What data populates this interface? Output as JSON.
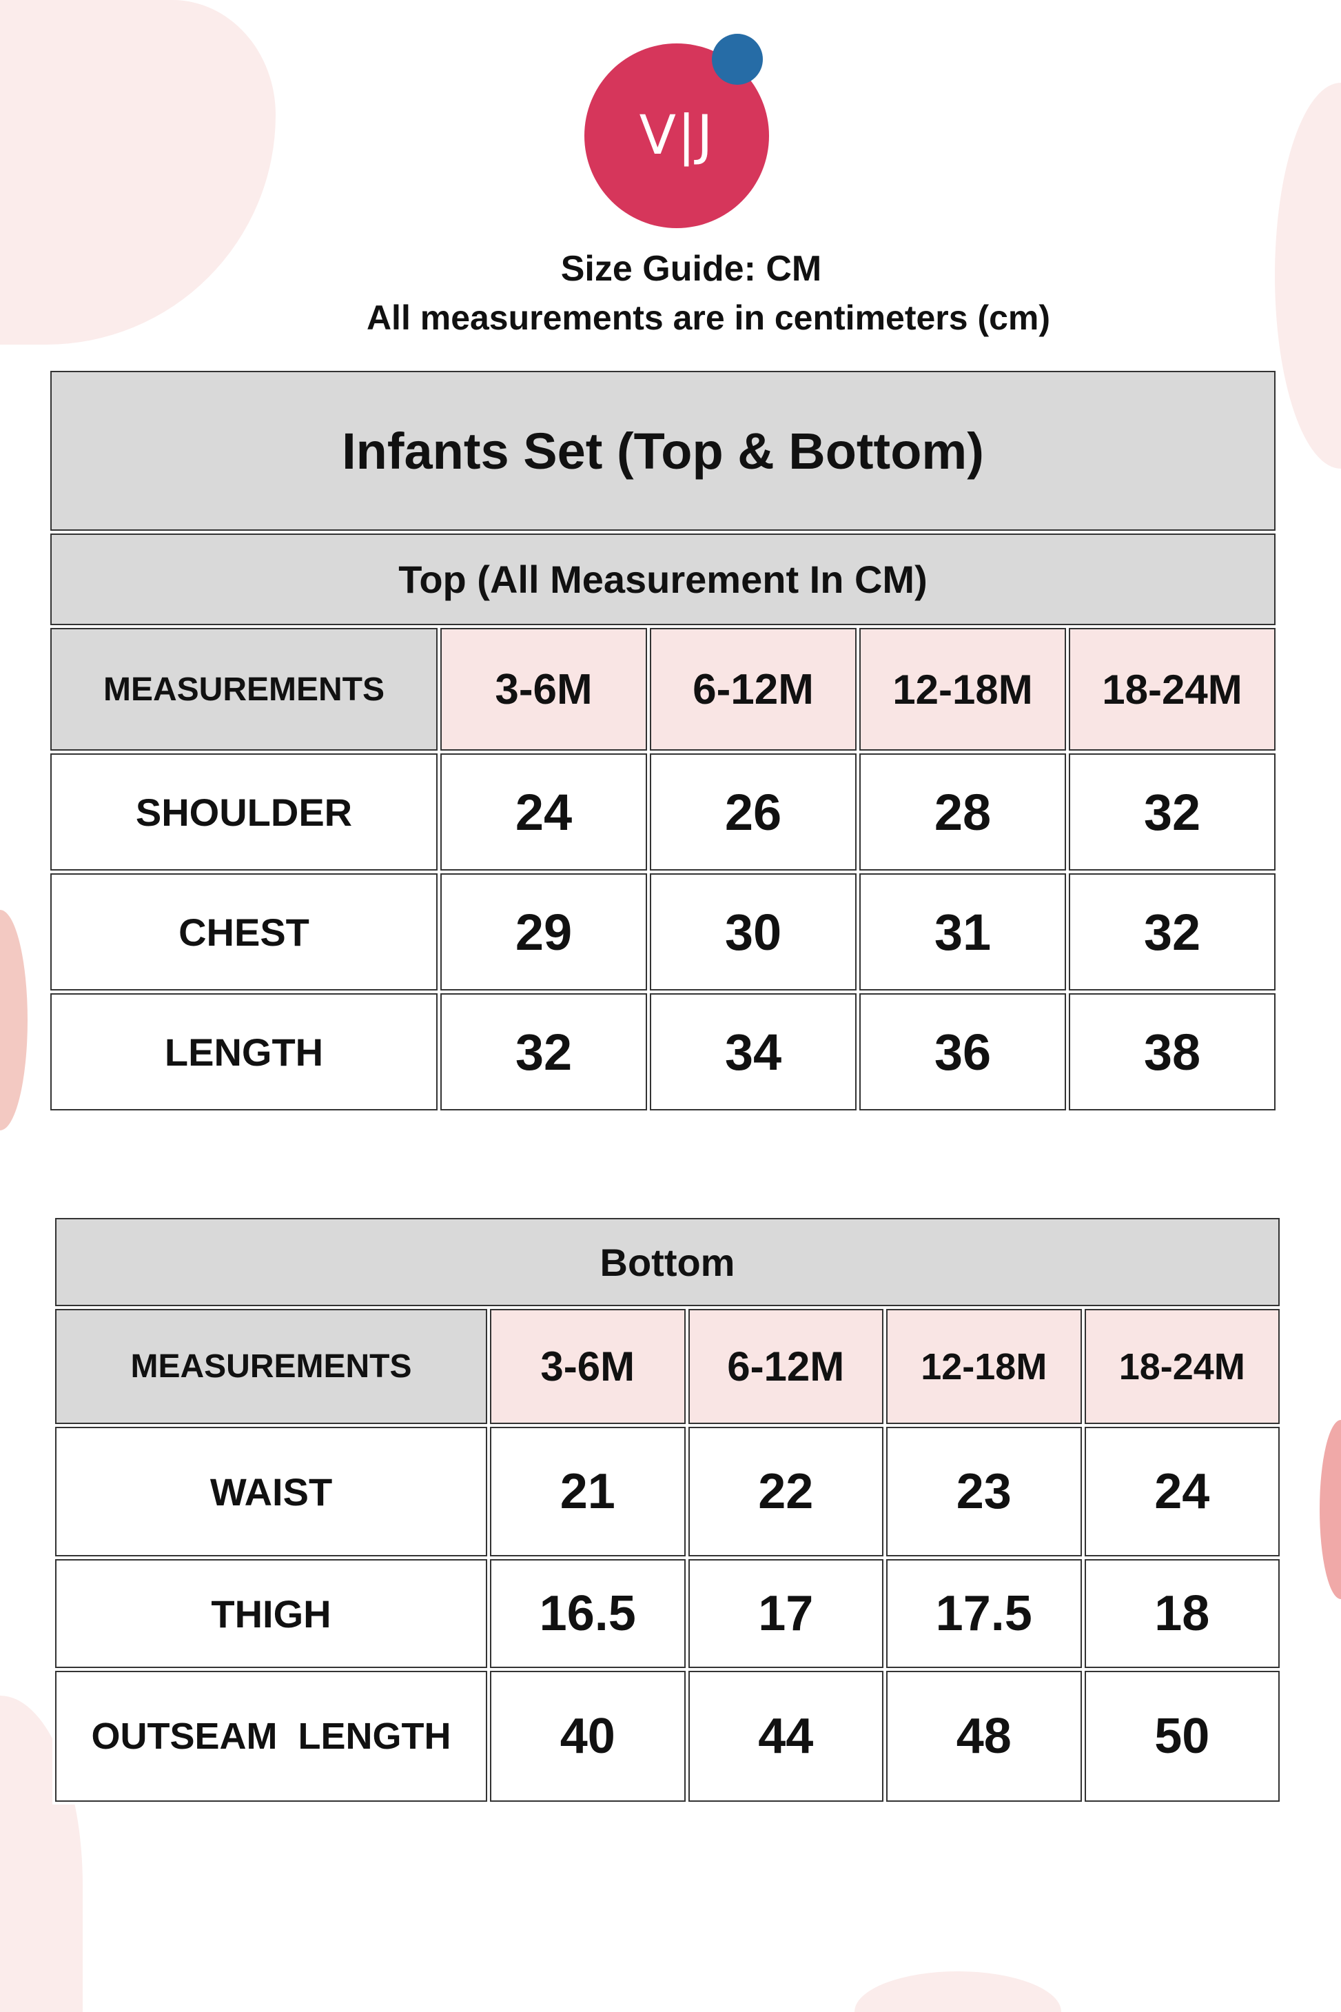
{
  "brand": {
    "logo_text": "V|J",
    "logo_color": "#d6365b",
    "dot_color": "#266ca6"
  },
  "heading": {
    "title": "Size Guide: CM",
    "subtitle": "All measurements are in centimeters (cm)"
  },
  "top_table": {
    "title": "Infants Set (Top & Bottom)",
    "section": "Top (All Measurement In CM)",
    "header": [
      "MEASUREMENTS",
      "3-6M",
      "6-12M",
      "12-18M",
      "18-24M"
    ],
    "rows": [
      [
        "SHOULDER",
        "24",
        "26",
        "28",
        "32"
      ],
      [
        "CHEST",
        "29",
        "30",
        "31",
        "32"
      ],
      [
        "LENGTH",
        "32",
        "34",
        "36",
        "38"
      ]
    ]
  },
  "bottom_table": {
    "section": "Bottom",
    "header": [
      "MEASUREMENTS",
      "3-6M",
      "6-12M",
      "12-18M",
      "18-24M"
    ],
    "rows": [
      [
        "WAIST",
        "21",
        "22",
        "23",
        "24"
      ],
      [
        "THIGH",
        "16.5",
        "17",
        "17.5",
        "18"
      ],
      [
        "OUTSEAM  LENGTH",
        "40",
        "44",
        "48",
        "50"
      ]
    ]
  },
  "colors": {
    "header_grey": "#d9d9d9",
    "size_pink": "#f9e5e4"
  }
}
